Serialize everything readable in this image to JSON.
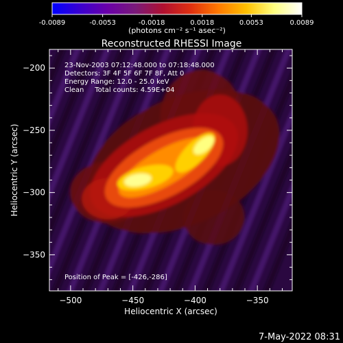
{
  "colorbar": {
    "tick_labels": [
      "-0.0089",
      "-0.0053",
      "-0.0018",
      "0.0018",
      "0.0053",
      "0.0089"
    ],
    "min": -0.0089,
    "max": 0.0089,
    "units_label": "(photons cm⁻² s⁻¹ asec⁻²)",
    "stops": [
      "#0000ff",
      "#3a00d0",
      "#6a00a8",
      "#7a1a7a",
      "#b01030",
      "#e03010",
      "#ff7a00",
      "#ffc000",
      "#ffff80",
      "#ffffff"
    ]
  },
  "footer": {
    "timestamp": "7-May-2022 08:31"
  },
  "chart_data": {
    "type": "heatmap",
    "title": "Reconstructed RHESSI Image",
    "xlabel": "Heliocentric X (arcsec)",
    "ylabel": "Heliocentric Y (arcsec)",
    "xlim": [
      -517,
      -322
    ],
    "ylim": [
      -379,
      -185
    ],
    "x_ticks": [
      -500,
      -450,
      -400,
      -350
    ],
    "y_ticks": [
      -200,
      -250,
      -300,
      -350
    ],
    "x_tick_labels": [
      "−500",
      "−450",
      "−400",
      "−350"
    ],
    "y_tick_labels": [
      "−200",
      "−250",
      "−300",
      "−350"
    ],
    "annotations": [
      "23-Nov-2003 07:12:48.000 to 07:18:48.000",
      "Detectors: 3F 4F 5F 6F 7F 8F, Att 0",
      "Energy Range: 12.0 - 25.0 keV",
      "Clean     Total counts: 4.59E+04"
    ],
    "peak_label": "Position of Peak = [-426,-286]",
    "peak": {
      "x": -426,
      "y": -286
    },
    "grid": false
  }
}
